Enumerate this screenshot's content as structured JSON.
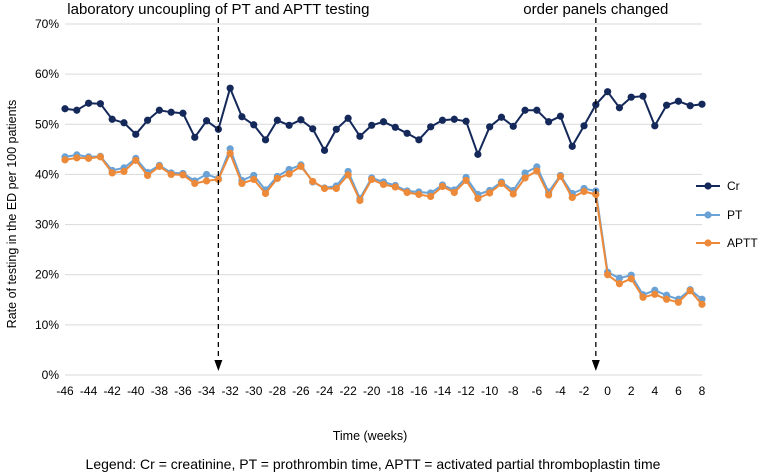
{
  "chart_data": {
    "type": "line",
    "title": "",
    "xlabel": "Time (weeks)",
    "ylabel": "Rate of testing in the ED per 100 patients",
    "ylim": [
      0,
      70
    ],
    "yticks": [
      "0%",
      "10%",
      "20%",
      "30%",
      "40%",
      "50%",
      "60%",
      "70%"
    ],
    "x_range": [
      -46,
      8
    ],
    "xticks": [
      "-46",
      "-44",
      "-42",
      "-40",
      "-38",
      "-36",
      "-34",
      "-32",
      "-30",
      "-28",
      "-26",
      "-24",
      "-22",
      "-20",
      "-18",
      "-16",
      "-14",
      "-12",
      "-10",
      "-8",
      "-6",
      "-4",
      "-2",
      "0",
      "2",
      "4",
      "6",
      "8"
    ],
    "gridlines": "horizontal",
    "legend_position": "right",
    "annotations": [
      {
        "text": "laboratory uncoupling of PT and APTT testing",
        "x": -33
      },
      {
        "text": "order panels changed",
        "x": -1
      }
    ],
    "caption": "Legend: Cr = creatinine, PT = prothrombin time, APTT = activated partial thromboplastin time",
    "series": [
      {
        "name": "Cr",
        "color": "#14285a",
        "x": [
          -46,
          -45,
          -44,
          -43,
          -42,
          -41,
          -40,
          -39,
          -38,
          -37,
          -36,
          -35,
          -34,
          -33,
          -32,
          -31,
          -30,
          -29,
          -28,
          -27,
          -26,
          -25,
          -24,
          -23,
          -22,
          -21,
          -20,
          -19,
          -18,
          -17,
          -16,
          -15,
          -14,
          -13,
          -12,
          -11,
          -10,
          -9,
          -8,
          -7,
          -6,
          -5,
          -4,
          -3,
          -2,
          -1,
          0,
          1,
          2,
          3,
          4,
          5,
          6,
          7,
          8
        ],
        "values": [
          53.1,
          52.8,
          54.2,
          54.1,
          51,
          50.3,
          48,
          50.8,
          52.8,
          52.4,
          52.2,
          47.4,
          50.7,
          49,
          57.2,
          51.5,
          49.9,
          46.9,
          50.8,
          49.8,
          50.9,
          49.1,
          44.8,
          49,
          51.2,
          47.6,
          49.8,
          50.5,
          49.4,
          48.2,
          46.9,
          49.5,
          50.8,
          51,
          50.6,
          44,
          49.5,
          51.4,
          49.6,
          52.8,
          52.8,
          50.5,
          51.6,
          45.6,
          49.7,
          53.9,
          56.5,
          53.3,
          55.4,
          55.6,
          49.7,
          53.8,
          54.6,
          53.7,
          54
        ]
      },
      {
        "name": "PT",
        "color": "#6aa2d6",
        "x": [
          -46,
          -45,
          -44,
          -43,
          -42,
          -41,
          -40,
          -39,
          -38,
          -37,
          -36,
          -35,
          -34,
          -33,
          -32,
          -31,
          -30,
          -29,
          -28,
          -27,
          -26,
          -25,
          -24,
          -23,
          -22,
          -21,
          -20,
          -19,
          -18,
          -17,
          -16,
          -15,
          -14,
          -13,
          -12,
          -11,
          -10,
          -9,
          -8,
          -7,
          -6,
          -5,
          -4,
          -3,
          -2,
          -1,
          0,
          1,
          2,
          3,
          4,
          5,
          6,
          7,
          8
        ],
        "values": [
          43.5,
          43.9,
          43.5,
          43.6,
          40.8,
          41.3,
          43.2,
          40.4,
          41.8,
          40.3,
          40.2,
          38.7,
          40,
          39.2,
          45.1,
          38.8,
          39.8,
          36.9,
          39.6,
          41,
          41.9,
          38.5,
          37.3,
          37.7,
          40.6,
          35.2,
          39.3,
          38.5,
          37.8,
          36.7,
          36.5,
          36.3,
          37.9,
          36.9,
          39.4,
          36,
          36.8,
          38.5,
          36.8,
          40.3,
          41.5,
          36.5,
          39.8,
          36.2,
          37.2,
          36.7,
          20.5,
          19.3,
          19.9,
          16,
          16.9,
          15.9,
          15.1,
          17,
          15.1
        ]
      },
      {
        "name": "APTT",
        "color": "#ed8a3a",
        "x": [
          -46,
          -45,
          -44,
          -43,
          -42,
          -41,
          -40,
          -39,
          -38,
          -37,
          -36,
          -35,
          -34,
          -33,
          -32,
          -31,
          -30,
          -29,
          -28,
          -27,
          -26,
          -25,
          -24,
          -23,
          -22,
          -21,
          -20,
          -19,
          -18,
          -17,
          -16,
          -15,
          -14,
          -13,
          -12,
          -11,
          -10,
          -9,
          -8,
          -7,
          -6,
          -5,
          -4,
          -3,
          -2,
          -1,
          0,
          1,
          2,
          3,
          4,
          5,
          6,
          7,
          8
        ],
        "values": [
          42.9,
          43.3,
          43.2,
          43.5,
          40.3,
          40.6,
          42.8,
          39.8,
          41.6,
          40,
          39.9,
          38.2,
          38.7,
          39,
          44.2,
          38.2,
          39,
          36.2,
          39.2,
          40.1,
          41.6,
          38.6,
          37.2,
          37.2,
          39.9,
          34.8,
          39,
          38,
          37.5,
          36.4,
          36,
          35.6,
          37.6,
          36.4,
          38.8,
          35.2,
          36.3,
          38.2,
          36.1,
          39.3,
          40.7,
          35.9,
          39.6,
          35.4,
          36.6,
          36,
          20,
          18.2,
          19.2,
          15.5,
          16.1,
          15.1,
          14.5,
          16.8,
          14.1
        ]
      }
    ]
  }
}
